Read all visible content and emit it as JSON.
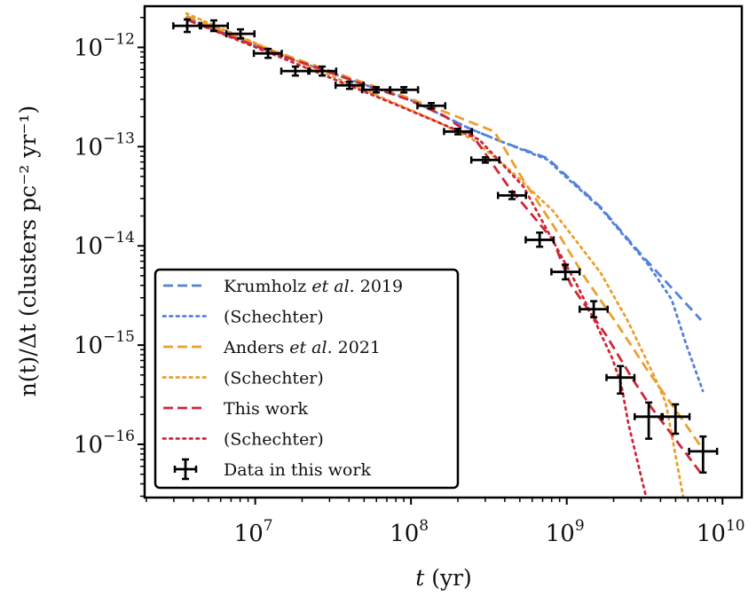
{
  "chart_data": {
    "type": "line",
    "title": "",
    "xlabel": "t (yr)",
    "ylabel": "n(t)/Δt (clusters pc⁻² yr⁻¹)",
    "xscale": "log",
    "yscale": "log",
    "xlim": [
      1950000.0,
      13300000000.0
    ],
    "ylim": [
      2.91e-17,
      2.6e-12
    ],
    "grid": false,
    "legend_position": "bottom-left",
    "x_ticks": [
      {
        "value": 10000000.0,
        "base": "10",
        "exp": "7"
      },
      {
        "value": 100000000.0,
        "base": "10",
        "exp": "8"
      },
      {
        "value": 1000000000.0,
        "base": "10",
        "exp": "9"
      },
      {
        "value": 10000000000.0,
        "base": "10",
        "exp": "10"
      }
    ],
    "y_ticks": [
      {
        "value": 1e-12,
        "base": "10",
        "exp": "−12"
      },
      {
        "value": 1e-13,
        "base": "10",
        "exp": "−13"
      },
      {
        "value": 1e-14,
        "base": "10",
        "exp": "−14"
      },
      {
        "value": 1e-15,
        "base": "10",
        "exp": "−15"
      },
      {
        "value": 1e-16,
        "base": "10",
        "exp": "−16"
      }
    ],
    "series": [
      {
        "name": "Krumholz et al. 2019",
        "style": "dashed",
        "color": "#5282db",
        "points": [
          [
            3610000.0,
            1.99e-12
          ],
          [
            13400000.0,
            8.71e-13
          ],
          [
            49800000.0,
            4.23e-13
          ],
          [
            95900000.0,
            3.04e-13
          ],
          [
            240000000.0,
            1.51e-13
          ],
          [
            390000000.0,
            1.11e-13
          ],
          [
            752000000.0,
            7.66e-14
          ],
          [
            929000000.0,
            5.61e-14
          ],
          [
            1650000000.0,
            2.46e-14
          ],
          [
            3020000000.0,
            8.09e-15
          ],
          [
            7280000000.0,
            1.79e-15
          ]
        ]
      },
      {
        "name": "(Schechter)",
        "style": "dotted",
        "color": "#5282db",
        "points": [
          [
            3610000.0,
            1.99e-12
          ],
          [
            13400000.0,
            8.71e-13
          ],
          [
            49800000.0,
            4.23e-13
          ],
          [
            95900000.0,
            3.04e-13
          ],
          [
            240000000.0,
            1.51e-13
          ],
          [
            390000000.0,
            1.11e-13
          ],
          [
            752000000.0,
            7.4e-14
          ],
          [
            929000000.0,
            5.4e-14
          ],
          [
            1650000000.0,
            2.4e-14
          ],
          [
            3020000000.0,
            7.8e-15
          ],
          [
            3310000000.0,
            6.58e-15
          ],
          [
            4720000000.0,
            2.88e-15
          ],
          [
            5830000000.0,
            1.03e-15
          ],
          [
            7480000000.0,
            3.45e-16
          ]
        ]
      },
      {
        "name": "Anders et al. 2021",
        "style": "dashed",
        "color": "#eb9f2e",
        "points": [
          [
            3610000.0,
            2.07e-12
          ],
          [
            13400000.0,
            9.08e-13
          ],
          [
            49800000.0,
            4.41e-13
          ],
          [
            95900000.0,
            3.1e-13
          ],
          [
            178000000.0,
            2.14e-13
          ],
          [
            264000000.0,
            1.67e-13
          ],
          [
            343000000.0,
            1.42e-13
          ],
          [
            528000000.0,
            4.57e-14
          ],
          [
            815000000.0,
            1.63e-14
          ],
          [
            1320000000.0,
            4.7e-15
          ],
          [
            2150000000.0,
            1.55e-15
          ],
          [
            3320000000.0,
            5.5e-16
          ],
          [
            4920000000.0,
            2.3e-16
          ],
          [
            7300000000.0,
            9.4e-17
          ]
        ]
      },
      {
        "name": "(Schechter)",
        "style": "dotted",
        "color": "#eb9f2e",
        "points": [
          [
            3610000.0,
            2.2e-12
          ],
          [
            13400000.0,
            9.08e-13
          ],
          [
            80900000.0,
            2.69e-13
          ],
          [
            148000000.0,
            1.78e-13
          ],
          [
            250000000.0,
            1.18e-13
          ],
          [
            406000000.0,
            6.35e-14
          ],
          [
            815000000.0,
            2.26e-14
          ],
          [
            1650000000.0,
            5.35e-15
          ],
          [
            2450000000.0,
            1.79e-15
          ],
          [
            3640000000.0,
            4.89e-16
          ],
          [
            4320000000.0,
            2.63e-16
          ],
          [
            5600000000.0,
            2.91e-17
          ]
        ]
      },
      {
        "name": "This work",
        "style": "dashed",
        "color": "#cf2739",
        "points": [
          [
            3610000.0,
            1.91e-12
          ],
          [
            13400000.0,
            8.71e-13
          ],
          [
            25800000.0,
            6.14e-13
          ],
          [
            49800000.0,
            4.23e-13
          ],
          [
            95900000.0,
            2.98e-13
          ],
          [
            162000000.0,
            2.06e-13
          ],
          [
            250000000.0,
            1.28e-13
          ],
          [
            423000000.0,
            3.95e-14
          ],
          [
            815000000.0,
            1.15e-14
          ],
          [
            1060000000.0,
            4.07e-15
          ],
          [
            1790000000.0,
            1.26e-15
          ],
          [
            2660000000.0,
            4.49e-16
          ],
          [
            3450000000.0,
            2.42e-16
          ],
          [
            7290000000.0,
            5.08e-17
          ]
        ]
      },
      {
        "name": "(Schechter)",
        "style": "dotted",
        "color": "#cf2739",
        "points": [
          [
            3610000.0,
            1.91e-12
          ],
          [
            13400000.0,
            8.36e-13
          ],
          [
            80900000.0,
            2.63e-13
          ],
          [
            274000000.0,
            1.18e-13
          ],
          [
            528000000.0,
            3.95e-14
          ],
          [
            1160000000.0,
            4.07e-15
          ],
          [
            1570000000.0,
            1.55e-15
          ],
          [
            1960000000.0,
            7.36e-16
          ],
          [
            2240000000.0,
            3.97e-16
          ],
          [
            2490000000.0,
            1.6e-16
          ],
          [
            3240000000.0,
            2.91e-17
          ]
        ]
      }
    ],
    "errorbar_series": {
      "name": "Data in this work",
      "color": "#000000",
      "points": [
        {
          "x": 3660000.0,
          "x_lo": 2980000.0,
          "x_hi": 4500000.0,
          "y": 1.65e-12,
          "y_lo": 1.43e-12,
          "y_hi": 1.91e-12
        },
        {
          "x": 5420000.0,
          "x_lo": 4410000.0,
          "x_hi": 6670000.0,
          "y": 1.65e-12,
          "y_lo": 1.46e-12,
          "y_hi": 1.87e-12
        },
        {
          "x": 8040000.0,
          "x_lo": 6540000.0,
          "x_hi": 9890000.0,
          "y": 1.37e-12,
          "y_lo": 1.23e-12,
          "y_hi": 1.52e-12
        },
        {
          "x": 12100000.0,
          "x_lo": 9800000.0,
          "x_hi": 14800000.0,
          "y": 8.7e-13,
          "y_lo": 7.84e-13,
          "y_hi": 9.66e-13
        },
        {
          "x": 18100000.0,
          "x_lo": 14700000.0,
          "x_hi": 22300000.0,
          "y": 5.77e-13,
          "y_lo": 5.2e-13,
          "y_hi": 6.41e-13
        },
        {
          "x": 26900000.0,
          "x_lo": 21900000.0,
          "x_hi": 33100000.0,
          "y": 5.77e-13,
          "y_lo": 5.2e-13,
          "y_hi": 6.41e-13
        },
        {
          "x": 40300000.0,
          "x_lo": 32800000.0,
          "x_hi": 49600000.0,
          "y": 4.15e-13,
          "y_lo": 3.82e-13,
          "y_hi": 4.51e-13
        },
        {
          "x": 59800000.0,
          "x_lo": 48600000.0,
          "x_hi": 73600000.0,
          "y": 3.74e-13,
          "y_lo": 3.51e-13,
          "y_hi": 3.98e-13
        },
        {
          "x": 90000000.0,
          "x_lo": 73200000.0,
          "x_hi": 111000000.0,
          "y": 3.74e-13,
          "y_lo": 3.51e-13,
          "y_hi": 3.98e-13
        },
        {
          "x": 135000000.0,
          "x_lo": 110000000.0,
          "x_hi": 166000000.0,
          "y": 2.58e-13,
          "y_lo": 2.42e-13,
          "y_hi": 2.75e-13
        },
        {
          "x": 200000000.0,
          "x_lo": 163000000.0,
          "x_hi": 246000000.0,
          "y": 1.42e-13,
          "y_lo": 1.33e-13,
          "y_hi": 1.51e-13
        },
        {
          "x": 300000000.0,
          "x_lo": 244000000.0,
          "x_hi": 369000000.0,
          "y": 7.34e-14,
          "y_lo": 6.9e-14,
          "y_hi": 7.81e-14
        },
        {
          "x": 445000000.0,
          "x_lo": 362000000.0,
          "x_hi": 547000000.0,
          "y": 3.22e-14,
          "y_lo": 2.96e-14,
          "y_hi": 3.5e-14
        },
        {
          "x": 670000000.0,
          "x_lo": 545000000.0,
          "x_hi": 824000000.0,
          "y": 1.15e-14,
          "y_lo": 9.8e-15,
          "y_hi": 1.36e-14
        },
        {
          "x": 980000000.0,
          "x_lo": 797000000.0,
          "x_hi": 1210000000.0,
          "y": 5.47e-15,
          "y_lo": 4.6e-15,
          "y_hi": 6.47e-15
        },
        {
          "x": 1490000000.0,
          "x_lo": 1210000000.0,
          "x_hi": 1830000000.0,
          "y": 2.3e-15,
          "y_lo": 1.91e-15,
          "y_hi": 2.77e-15
        },
        {
          "x": 2210000000.0,
          "x_lo": 1800000000.0,
          "x_hi": 2720000000.0,
          "y": 4.71e-16,
          "y_lo": 3.25e-16,
          "y_hi": 6.15e-16
        },
        {
          "x": 3360000000.0,
          "x_lo": 2730000000.0,
          "x_hi": 4130000000.0,
          "y": 1.9e-16,
          "y_lo": 1.14e-16,
          "y_hi": 2.64e-16
        },
        {
          "x": 4990000000.0,
          "x_lo": 4060000000.0,
          "x_hi": 6140000000.0,
          "y": 1.9e-16,
          "y_lo": 1.28e-16,
          "y_hi": 2.53e-16
        },
        {
          "x": 7500000000.0,
          "x_lo": 6100000000.0,
          "x_hi": 9230000000.0,
          "y": 8.5e-17,
          "y_lo": 5.2e-17,
          "y_hi": 1.2e-16
        }
      ]
    },
    "legend": [
      {
        "label_parts": [
          {
            "text": "Krumholz ",
            "italic": false
          },
          {
            "text": "et al.",
            "italic": true
          },
          {
            "text": " 2019",
            "italic": false
          }
        ],
        "style": "dashed",
        "color": "#5282db"
      },
      {
        "label_parts": [
          {
            "text": "(Schechter)",
            "italic": false
          }
        ],
        "style": "dotted",
        "color": "#5282db"
      },
      {
        "label_parts": [
          {
            "text": "Anders ",
            "italic": false
          },
          {
            "text": "et al.",
            "italic": true
          },
          {
            "text": " 2021",
            "italic": false
          }
        ],
        "style": "dashed",
        "color": "#eb9f2e"
      },
      {
        "label_parts": [
          {
            "text": "(Schechter)",
            "italic": false
          }
        ],
        "style": "dotted",
        "color": "#eb9f2e"
      },
      {
        "label_parts": [
          {
            "text": "This work",
            "italic": false
          }
        ],
        "style": "dashed",
        "color": "#cf2739"
      },
      {
        "label_parts": [
          {
            "text": "(Schechter)",
            "italic": false
          }
        ],
        "style": "dotted",
        "color": "#cf2739"
      },
      {
        "label_parts": [
          {
            "text": "Data in this work",
            "italic": false
          }
        ],
        "style": "errorbar",
        "color": "#000000"
      }
    ]
  }
}
